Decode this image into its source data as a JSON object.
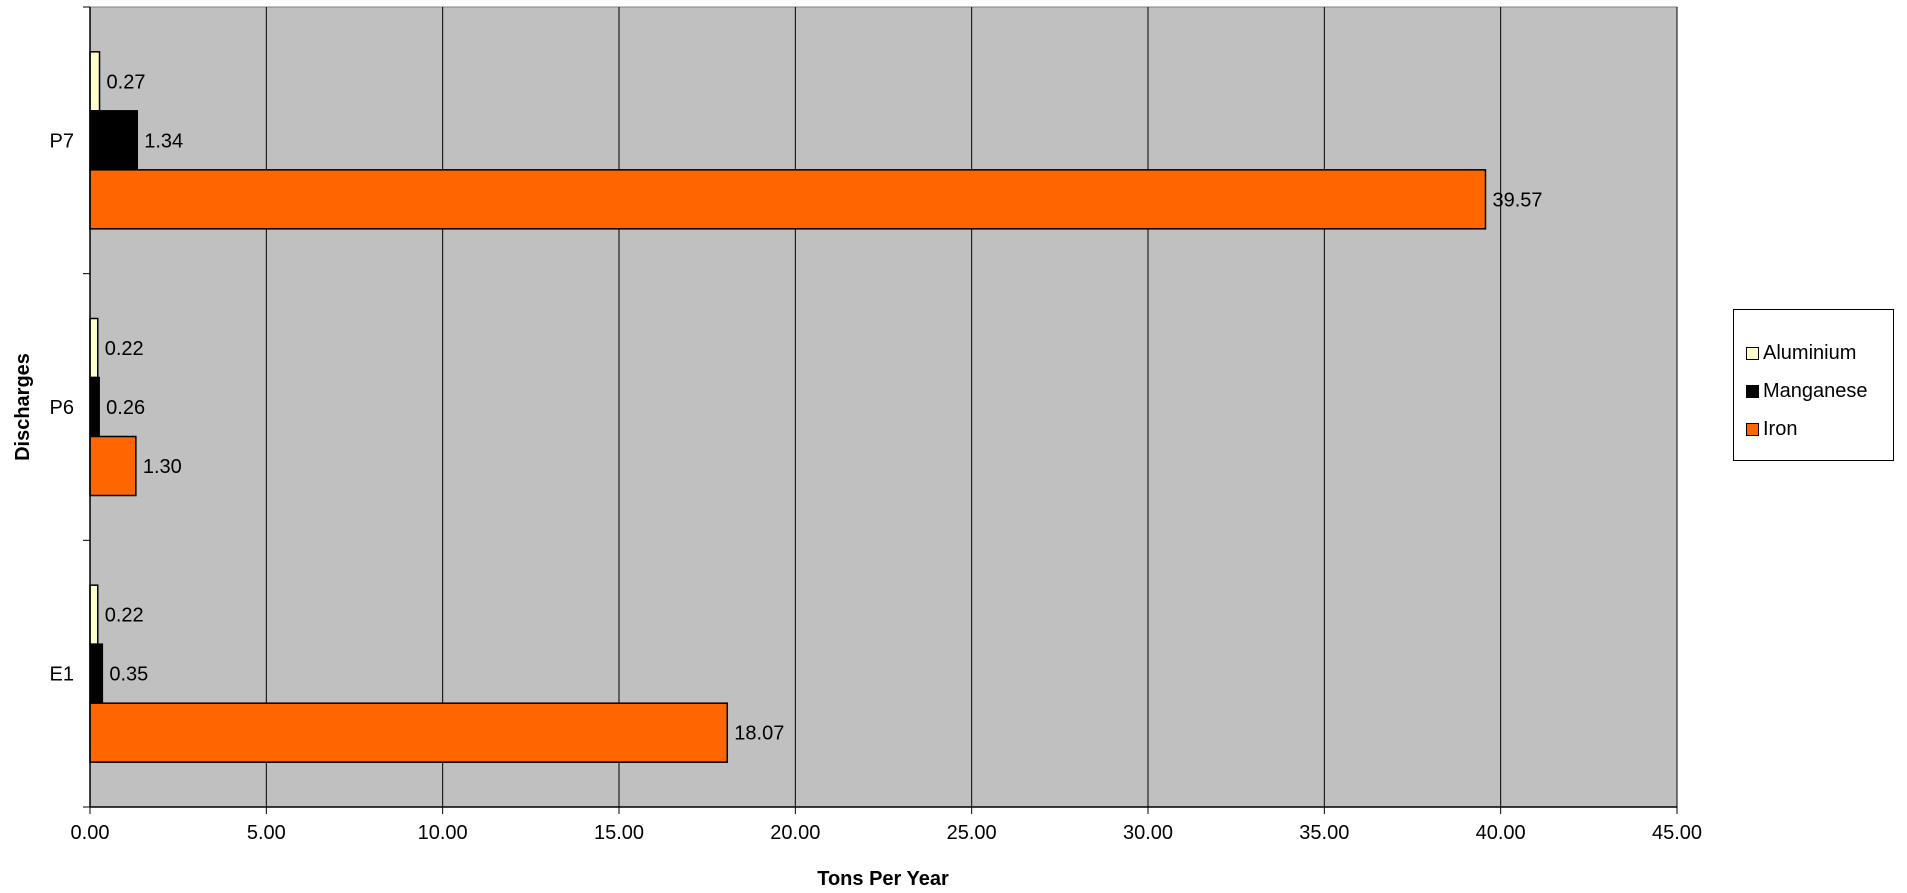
{
  "chart_data": {
    "type": "bar",
    "orientation": "horizontal",
    "categories": [
      "E1",
      "P6",
      "P7"
    ],
    "series": [
      {
        "name": "Aluminium",
        "color": "#FFFFCC",
        "values": [
          0.22,
          0.22,
          0.27
        ],
        "labels": [
          "0.22",
          "0.22",
          "0.27"
        ]
      },
      {
        "name": "Manganese",
        "color": "#000000",
        "values": [
          0.35,
          0.26,
          1.34
        ],
        "labels": [
          "0.35",
          "0.26",
          "1.34"
        ]
      },
      {
        "name": "Iron",
        "color": "#FF6600",
        "values": [
          18.07,
          1.3,
          39.57
        ],
        "labels": [
          "18.07",
          "1.30",
          "39.57"
        ]
      }
    ],
    "xlabel": "Tons Per Year",
    "ylabel": "Discharges",
    "xlim": [
      0,
      45
    ],
    "xticks": [
      "0.00",
      "5.00",
      "10.00",
      "15.00",
      "20.00",
      "25.00",
      "30.00",
      "35.00",
      "40.00",
      "45.00"
    ],
    "grid": "vertical",
    "plot_background": "#C0C0C0",
    "legend_position": "right"
  }
}
